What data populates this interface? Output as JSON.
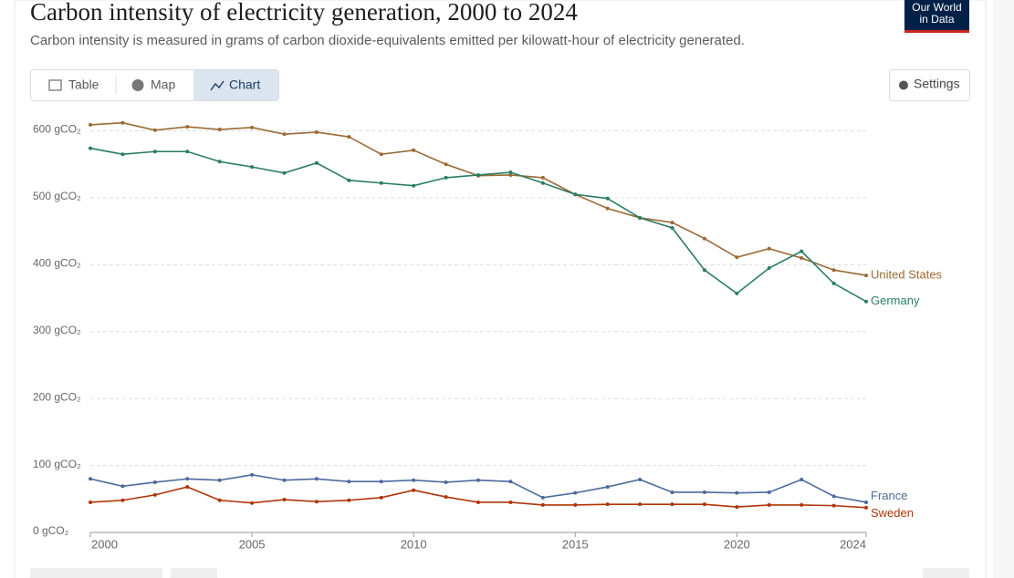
{
  "chart_data": {
    "type": "line",
    "title": "Carbon intensity of electricity generation, 2000 to 2024",
    "subtitle": "Carbon intensity is measured in grams of carbon dioxide-equivalents emitted per kilowatt-hour of electricity generated.",
    "logo": "Our World in Data",
    "tabs": [
      "Table",
      "Map",
      "Chart"
    ],
    "settings_label": "Settings",
    "x": [
      2000,
      2001,
      2002,
      2003,
      2004,
      2005,
      2006,
      2007,
      2008,
      2009,
      2010,
      2011,
      2012,
      2013,
      2014,
      2015,
      2016,
      2017,
      2018,
      2019,
      2020,
      2021,
      2022,
      2023,
      2024
    ],
    "xlim": [
      2000,
      2024
    ],
    "xticks": [
      2000,
      2005,
      2010,
      2015,
      2020,
      2024
    ],
    "ylim": [
      0,
      600
    ],
    "yticks": [
      {
        "value": 0,
        "label": "0 gCO₂"
      },
      {
        "value": 100,
        "label": "100 gCO₂"
      },
      {
        "value": 200,
        "label": "200 gCO₂"
      },
      {
        "value": 300,
        "label": "300 gCO₂"
      },
      {
        "value": 400,
        "label": "400 gCO₂"
      },
      {
        "value": 500,
        "label": "500 gCO₂"
      },
      {
        "value": 600,
        "label": "600 gCO₂"
      }
    ],
    "grid": true,
    "series": [
      {
        "name": "United States",
        "color": "#9b6a35",
        "values": [
          609,
          612,
          601,
          606,
          602,
          605,
          595,
          598,
          591,
          565,
          571,
          550,
          533,
          534,
          530,
          505,
          484,
          470,
          463,
          439,
          411,
          424,
          410,
          392,
          384
        ]
      },
      {
        "name": "Germany",
        "color": "#2a7d62",
        "values": [
          574,
          565,
          569,
          569,
          554,
          546,
          537,
          552,
          526,
          522,
          518,
          530,
          534,
          538,
          522,
          505,
          499,
          470,
          455,
          392,
          357,
          395,
          420,
          372,
          345
        ]
      },
      {
        "name": "France",
        "color": "#4c6a9c",
        "values": [
          80,
          69,
          75,
          80,
          78,
          86,
          78,
          80,
          76,
          76,
          78,
          75,
          78,
          76,
          52,
          59,
          68,
          79,
          60,
          60,
          59,
          60,
          79,
          54,
          45
        ]
      },
      {
        "name": "Sweden",
        "color": "#b13507",
        "values": [
          45,
          48,
          56,
          68,
          48,
          44,
          49,
          46,
          48,
          52,
          63,
          53,
          45,
          45,
          41,
          41,
          42,
          42,
          42,
          42,
          38,
          41,
          41,
          40,
          37
        ]
      }
    ]
  }
}
